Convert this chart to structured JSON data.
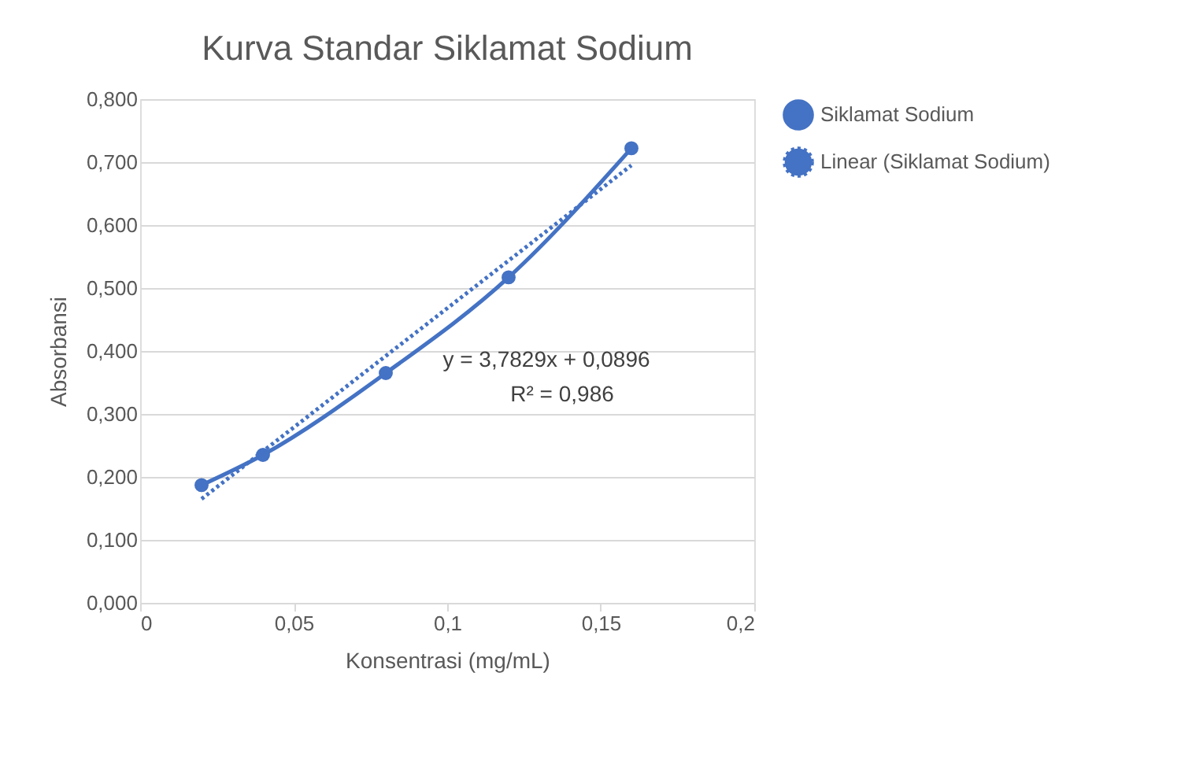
{
  "chart_data": {
    "type": "line",
    "title": "Kurva Standar Siklamat Sodium",
    "xlabel": "Konsentrasi (mg/mL)",
    "ylabel": "Absorbansi",
    "xlim": [
      0,
      0.2
    ],
    "xticks": [
      0,
      {
        "value": 0.05,
        "label": "0,05"
      },
      {
        "value": 0.1,
        "label": "0,1"
      },
      {
        "value": 0.15,
        "label": "0,15"
      },
      {
        "value": 0.2,
        "label": "0,2"
      }
    ],
    "ylim": [
      0,
      0.8
    ],
    "yticks": [
      {
        "value": 0,
        "label": "0,000"
      },
      {
        "value": 0.1,
        "label": "0,100"
      },
      {
        "value": 0.2,
        "label": "0,200"
      },
      {
        "value": 0.3,
        "label": "0,300"
      },
      {
        "value": 0.4,
        "label": "0,400"
      },
      {
        "value": 0.5,
        "label": "0,500"
      },
      {
        "value": 0.6,
        "label": "0,600"
      },
      {
        "value": 0.7,
        "label": "0,700"
      },
      {
        "value": 0.8,
        "label": "0,800"
      }
    ],
    "grid": "y",
    "legend": "right",
    "series": [
      {
        "name": "Siklamat Sodium",
        "color": "#4472c4",
        "marker": "circle",
        "line_style": "solid",
        "x": [
          0.02,
          0.04,
          0.08,
          0.12,
          0.16
        ],
        "values": [
          0.187,
          0.235,
          0.365,
          0.517,
          0.722
        ]
      },
      {
        "name": "Linear (Siklamat Sodium)",
        "color": "#4472c4",
        "marker": "none",
        "line_style": "dotted",
        "x": [
          0.02,
          0.16
        ],
        "values": [
          0.165,
          0.695
        ]
      }
    ],
    "annotations": [
      "y = 3,7829x + 0,0896",
      "R² = 0,986"
    ]
  }
}
